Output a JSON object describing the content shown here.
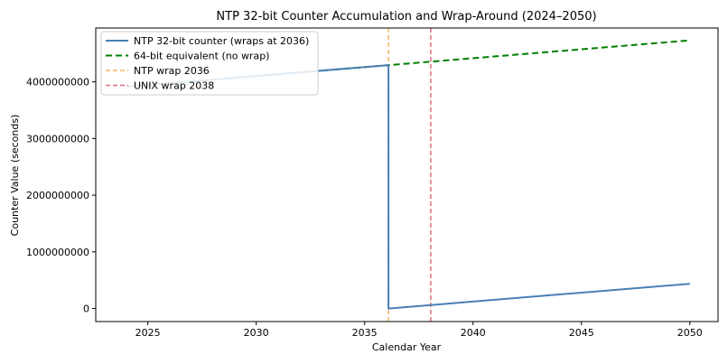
{
  "chart_data": {
    "type": "line",
    "title": "NTP 32-bit Counter Accumulation and Wrap-Around (2024–2050)",
    "xlabel": "Calendar Year",
    "ylabel": "Counter Value (seconds)",
    "xlim": [
      2022.6,
      2051.3
    ],
    "ylim": [
      -230000000,
      4950000000
    ],
    "xticks": [
      2025,
      2030,
      2035,
      2040,
      2045,
      2050
    ],
    "xtick_labels": [
      "2025",
      "2030",
      "2035",
      "2040",
      "2045",
      "2050"
    ],
    "yticks": [
      0,
      1000000000,
      2000000000,
      3000000000,
      4000000000
    ],
    "ytick_labels": [
      "0",
      "1000000000",
      "2000000000",
      "3000000000",
      "4000000000"
    ],
    "grid": false,
    "legend_position": "top-left",
    "series": [
      {
        "name": "NTP 32-bit counter (wraps at 2036)",
        "color": "#4a7fb5",
        "style": "solid",
        "x": [
          2024.0,
          2036.1,
          2036.1,
          2050.0
        ],
        "y": [
          3913000000,
          4294967295,
          0,
          437000000
        ]
      },
      {
        "name": "64-bit equivalent (no wrap)",
        "color": "#008000",
        "style": "dashed",
        "x": [
          2024.0,
          2050.0
        ],
        "y": [
          3913000000,
          4732000000
        ]
      }
    ],
    "vlines": [
      {
        "name": "NTP wrap 2036",
        "x": 2036.1,
        "color": "#f5b461",
        "style": "dashed"
      },
      {
        "name": "UNIX wrap 2038",
        "x": 2038.05,
        "color": "#e06b7c",
        "style": "dashed"
      }
    ]
  }
}
